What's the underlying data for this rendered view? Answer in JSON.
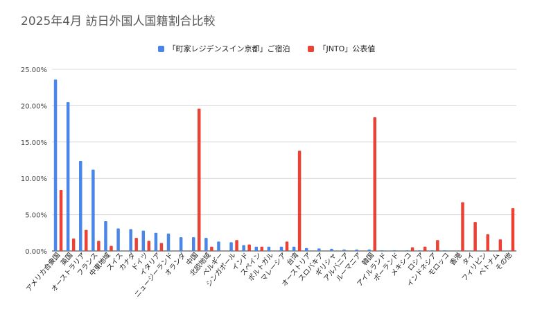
{
  "title": "2025年4月 訪日外国人国籍割合比較",
  "colors": {
    "series1": "#4a86e8",
    "series2": "#ea4335",
    "grid": "#d9d9d9",
    "axis": "#333333"
  },
  "chart_data": {
    "type": "bar",
    "title": "2025年4月 訪日外国人国籍割合比較",
    "legend_position": "top-center",
    "grid": true,
    "ylim": [
      0,
      25
    ],
    "yticks": [
      "0.00%",
      "5.00%",
      "10.00%",
      "15.00%",
      "20.00%",
      "25.00%"
    ],
    "categories": [
      "アメリカ合衆国",
      "英国",
      "オーストラリア",
      "フランス",
      "中東地域",
      "スイス",
      "カナダ",
      "ドイツ",
      "イタリア",
      "ニュージーランド",
      "オランダ",
      "中国",
      "北欧地域",
      "ベルギー",
      "シンガポール",
      "インド",
      "スペイン",
      "ポルトガル",
      "マレーシア",
      "台湾",
      "オーストリア",
      "スロバキア",
      "ギリシャ",
      "アルバニア",
      "ルーマニア",
      "韓国",
      "アイルランド",
      "ポーランド",
      "メキシコ",
      "ロシア",
      "インドネシア",
      "モロッコ",
      "香港",
      "タイ",
      "フィリピン",
      "ベトナム",
      "その他"
    ],
    "series": [
      {
        "name": "「町家レジデンスイン京都」ご宿泊",
        "values": [
          23.6,
          20.5,
          12.4,
          11.2,
          4.1,
          3.1,
          3.0,
          2.8,
          2.5,
          2.4,
          1.9,
          1.9,
          1.8,
          1.3,
          1.2,
          0.8,
          0.6,
          0.6,
          0.6,
          0.6,
          0.4,
          0.35,
          0.3,
          0.2,
          0.2,
          0.2,
          0.1,
          0.1,
          0.1,
          0.1,
          0.1,
          0.1,
          0.0,
          0.0,
          0.0,
          0.0,
          0.0
        ]
      },
      {
        "name": "「JNTO」公表値",
        "values": [
          8.4,
          1.7,
          2.9,
          1.4,
          0.7,
          0.0,
          1.8,
          1.4,
          1.1,
          0.0,
          0.0,
          19.6,
          0.6,
          0.0,
          1.5,
          0.9,
          0.6,
          0.0,
          1.3,
          13.8,
          0.0,
          0.0,
          0.0,
          0.0,
          0.0,
          18.4,
          0.0,
          0.0,
          0.5,
          0.6,
          1.5,
          0.0,
          6.7,
          4.0,
          2.3,
          1.6,
          5.9
        ]
      }
    ]
  }
}
